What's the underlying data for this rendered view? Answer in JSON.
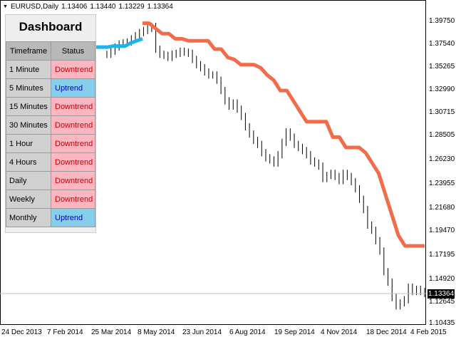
{
  "header": {
    "symbol": "EURUSD,Daily",
    "open": "1.13406",
    "high": "1.13440",
    "low": "1.13229",
    "close": "1.13364"
  },
  "price_axis": [
    "1.39750",
    "1.37540",
    "1.35265",
    "1.32990",
    "1.30715",
    "1.28505",
    "1.26230",
    "1.23955",
    "1.21680",
    "1.19470",
    "1.17195",
    "1.14920",
    "1.12645",
    "1.10435"
  ],
  "current_price": "1.13364",
  "date_axis": [
    "24 Dec 2013",
    "7 Feb 2014",
    "25 Mar 2014",
    "8 May 2014",
    "23 Jun 2014",
    "6 Aug 2014",
    "19 Sep 2014",
    "4 Nov 2014",
    "18 Dec 2014",
    "4 Feb 2015"
  ],
  "dashboard": {
    "title": "Dashboard",
    "headers": [
      "Timeframe",
      "Status"
    ],
    "rows": [
      {
        "timeframe": "1 Minute",
        "status": "Downtrend",
        "trend": "down"
      },
      {
        "timeframe": "5 Minutes",
        "status": "Uptrend",
        "trend": "up"
      },
      {
        "timeframe": "15 Minutes",
        "status": "Downtrend",
        "trend": "down"
      },
      {
        "timeframe": "30 Minutes",
        "status": "Downtrend",
        "trend": "down"
      },
      {
        "timeframe": "1 Hour",
        "status": "Downtrend",
        "trend": "down"
      },
      {
        "timeframe": "4 Hours",
        "status": "Downtrend",
        "trend": "down"
      },
      {
        "timeframe": "Daily",
        "status": "Downtrend",
        "trend": "down"
      },
      {
        "timeframe": "Weekly",
        "status": "Downtrend",
        "trend": "down"
      },
      {
        "timeframe": "Monthly",
        "status": "Uptrend",
        "trend": "up"
      }
    ]
  },
  "colors": {
    "downtrend_bg": "#ffb6c1",
    "downtrend_text": "#cc0000",
    "uptrend_bg": "#87ceeb",
    "uptrend_text": "#0000cc",
    "stop_line_down": "#f26b4a",
    "stop_line_up": "#1eb4e6",
    "bars": "#000000"
  },
  "chart_data": {
    "type": "line",
    "series": [
      {
        "values": [
          1.365,
          1.368,
          1.372,
          1.375,
          1.376,
          1.377,
          1.38,
          1.383,
          1.386,
          1.388,
          1.39,
          1.392,
          1.37,
          1.365,
          1.364,
          1.362,
          1.365,
          1.366,
          1.368,
          1.367,
          1.366,
          1.36,
          1.355,
          1.352,
          1.348,
          1.345,
          1.345,
          1.34,
          1.33,
          1.32,
          1.315,
          1.318,
          1.312,
          1.305,
          1.295,
          1.288,
          1.282,
          1.278,
          1.27,
          1.265,
          1.263,
          1.26,
          1.268,
          1.28,
          1.29,
          1.285,
          1.278,
          1.275,
          1.272,
          1.268,
          1.262,
          1.26,
          1.257,
          1.245,
          1.248,
          1.25,
          1.247,
          1.243,
          1.25,
          1.247,
          1.242,
          1.235,
          1.225,
          1.215,
          1.2,
          1.195,
          1.185,
          1.175,
          1.155,
          1.145,
          1.13,
          1.122,
          1.125,
          1.128,
          1.14,
          1.136,
          1.138,
          1.136,
          1.134
        ]
      },
      {
        "values": [
          1.395,
          1.395,
          1.39,
          1.385,
          1.385,
          1.38,
          1.38,
          1.378,
          1.378,
          1.378,
          1.378,
          1.37,
          1.37,
          1.362,
          1.36,
          1.355,
          1.355,
          1.355,
          1.352,
          1.345,
          1.34,
          1.33,
          1.33,
          1.32,
          1.31,
          1.3,
          1.3,
          1.3,
          1.3,
          1.285,
          1.285,
          1.275,
          1.275,
          1.275,
          1.27,
          1.26,
          1.25,
          1.23,
          1.21,
          1.19,
          1.18,
          1.18,
          1.18,
          1.18
        ]
      },
      {
        "values": [
          1.372,
          1.372,
          1.372,
          1.373,
          1.373,
          1.373,
          1.376,
          1.378,
          1.38
        ]
      }
    ]
  }
}
